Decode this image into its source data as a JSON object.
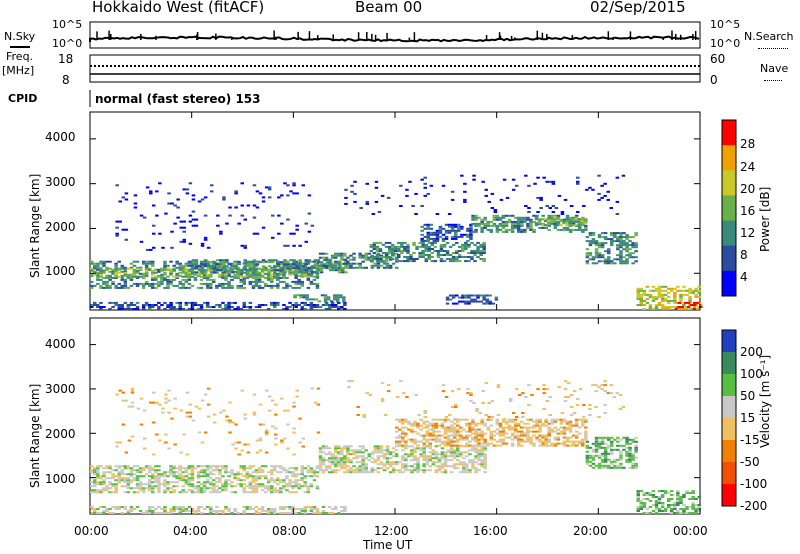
{
  "header": {
    "radar": "Hokkaido West (fitACF)",
    "beam": "Beam 00",
    "date": "02/Sep/2015"
  },
  "status_panel": {
    "nsky_label": "N.Sky",
    "nsky_ticks": [
      "10^5",
      "10^0"
    ],
    "nsearch_label": "N.Search",
    "nsearch_ticks": [
      "10^5",
      "10^0"
    ],
    "freq_label": "Freq.",
    "freq_unit": "[MHz]",
    "freq_ticks": [
      "18",
      "8"
    ],
    "nave_label": "Nave",
    "nave_ticks": [
      "60",
      "0"
    ],
    "cpid_label": "CPID",
    "cpid_text": "normal (fast stereo) 153"
  },
  "x_axis": {
    "label": "Time UT",
    "ticks": [
      "00:00",
      "04:00",
      "08:00",
      "12:00",
      "16:00",
      "20:00",
      "00:00"
    ]
  },
  "chart_data": [
    {
      "type": "heatmap",
      "panel": "power",
      "xlabel": "Time UT",
      "ylabel": "Slant Range [km]",
      "x_ticks": [
        "00:00",
        "04:00",
        "08:00",
        "12:00",
        "16:00",
        "20:00",
        "00:00"
      ],
      "y_ticks": [
        1000,
        2000,
        3000,
        4000
      ],
      "ylim": [
        180,
        4600
      ],
      "xlim_hours": [
        0,
        24
      ],
      "colorbar": {
        "label": "Power [dB]",
        "ticks": [
          4,
          8,
          12,
          16,
          20,
          24,
          28
        ],
        "range": [
          0,
          30
        ],
        "colors": [
          "#0000ff",
          "#2a4ba0",
          "#3a8a7a",
          "#6ab04a",
          "#c8c828",
          "#f0a000",
          "#ff0000"
        ]
      },
      "bands": [
        {
          "t": [
            0,
            9
          ],
          "r": [
            650,
            1250
          ],
          "level": 2
        },
        {
          "t": [
            0,
            9
          ],
          "r": [
            900,
            1100
          ],
          "level": 3
        },
        {
          "t": [
            4,
            10
          ],
          "r": [
            1000,
            1300
          ],
          "level": 2
        },
        {
          "t": [
            9,
            12
          ],
          "r": [
            1100,
            1450
          ],
          "level": 2
        },
        {
          "t": [
            11,
            15.5
          ],
          "r": [
            1250,
            1700
          ],
          "level": 2
        },
        {
          "t": [
            13,
            15
          ],
          "r": [
            1700,
            2100
          ],
          "level": 1
        },
        {
          "t": [
            15,
            19.5
          ],
          "r": [
            1900,
            2300
          ],
          "level": 2
        },
        {
          "t": [
            17.5,
            19.5
          ],
          "r": [
            2050,
            2250
          ],
          "level": 3
        },
        {
          "t": [
            19.5,
            21.5
          ],
          "r": [
            1200,
            1900
          ],
          "level": 2
        },
        {
          "t": [
            21.5,
            24
          ],
          "r": [
            180,
            700
          ],
          "level": 4
        },
        {
          "t": [
            23,
            24
          ],
          "r": [
            180,
            350
          ],
          "level": 6
        },
        {
          "t": [
            0,
            10
          ],
          "r": [
            180,
            350
          ],
          "level": 1
        },
        {
          "t": [
            8,
            10
          ],
          "r": [
            350,
            500
          ],
          "level": 2
        },
        {
          "t": [
            14,
            16
          ],
          "r": [
            300,
            500
          ],
          "level": 1
        },
        {
          "t": [
            1,
            9
          ],
          "r": [
            1500,
            3000
          ],
          "level": 0,
          "sparse": true
        },
        {
          "t": [
            10,
            21
          ],
          "r": [
            2300,
            3200
          ],
          "level": 0,
          "sparse": true
        }
      ]
    },
    {
      "type": "heatmap",
      "panel": "velocity",
      "xlabel": "Time UT",
      "ylabel": "Slant Range [km]",
      "x_ticks": [
        "00:00",
        "04:00",
        "08:00",
        "12:00",
        "16:00",
        "20:00",
        "00:00"
      ],
      "y_ticks": [
        1000,
        2000,
        3000,
        4000
      ],
      "ylim": [
        180,
        4600
      ],
      "xlim_hours": [
        0,
        24
      ],
      "colorbar": {
        "label": "Velocity [m s⁻¹]",
        "ticks": [
          200,
          100,
          50,
          15,
          -15,
          -50,
          -100,
          -200
        ],
        "colors": [
          "#2040c0",
          "#3a8a60",
          "#58c040",
          "#c8c8c8",
          "#f0c060",
          "#f08000",
          "#f05000",
          "#ff0000"
        ]
      },
      "bands": [
        {
          "t": [
            0,
            9
          ],
          "r": [
            650,
            1250
          ],
          "level": 3
        },
        {
          "t": [
            9,
            15.5
          ],
          "r": [
            1100,
            1700
          ],
          "level": 3
        },
        {
          "t": [
            12,
            19.5
          ],
          "r": [
            1700,
            2300
          ],
          "level": 4
        },
        {
          "t": [
            19.5,
            21.5
          ],
          "r": [
            1200,
            1900
          ],
          "level": 2
        },
        {
          "t": [
            21.5,
            24
          ],
          "r": [
            180,
            700
          ],
          "level": 2
        },
        {
          "t": [
            0,
            10
          ],
          "r": [
            180,
            350
          ],
          "level": 3
        },
        {
          "t": [
            1,
            9
          ],
          "r": [
            1500,
            3000
          ],
          "level": 4,
          "sparse": true
        },
        {
          "t": [
            10,
            21
          ],
          "r": [
            2300,
            3200
          ],
          "level": 4,
          "sparse": true
        }
      ]
    }
  ]
}
